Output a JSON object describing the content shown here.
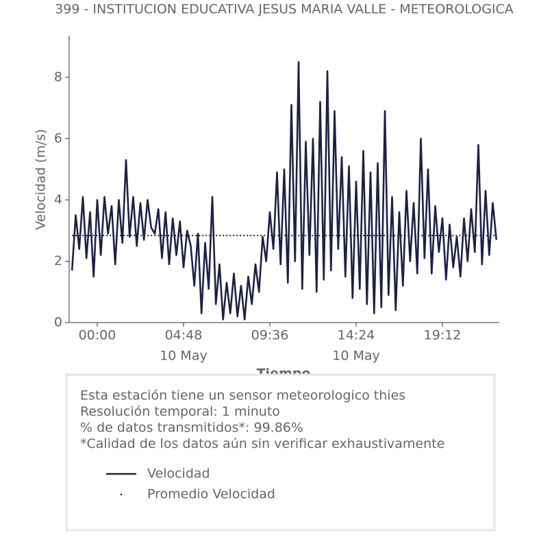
{
  "chart_data": {
    "type": "line",
    "title": "399 - INSTITUCION EDUCATIVA JESUS MARIA VALLE - METEOROLOGICA",
    "xlabel": "Tiempo",
    "ylabel": "Velocidad (m/s)",
    "x": [
      -1.4,
      -1.2,
      -1.0,
      -0.8,
      -0.6,
      -0.4,
      -0.2,
      0.0,
      0.2,
      0.4,
      0.6,
      0.8,
      1.0,
      1.2,
      1.4,
      1.6,
      1.8,
      2.0,
      2.2,
      2.4,
      2.6,
      2.8,
      3.0,
      3.2,
      3.4,
      3.6,
      3.8,
      4.0,
      4.2,
      4.4,
      4.6,
      4.8,
      5.0,
      5.2,
      5.4,
      5.6,
      5.8,
      6.0,
      6.2,
      6.4,
      6.6,
      6.8,
      7.0,
      7.2,
      7.4,
      7.6,
      7.8,
      8.0,
      8.2,
      8.4,
      8.6,
      8.8,
      9.0,
      9.2,
      9.4,
      9.6,
      9.8,
      10.0,
      10.2,
      10.4,
      10.6,
      10.8,
      11.0,
      11.2,
      11.4,
      11.6,
      11.8,
      12.0,
      12.2,
      12.4,
      12.6,
      12.8,
      13.0,
      13.2,
      13.4,
      13.6,
      13.8,
      14.0,
      14.2,
      14.4,
      14.6,
      14.8,
      15.0,
      15.2,
      15.4,
      15.6,
      15.8,
      16.0,
      16.2,
      16.4,
      16.6,
      16.8,
      17.0,
      17.2,
      17.4,
      17.6,
      17.8,
      18.0,
      18.2,
      18.4,
      18.6,
      18.8,
      19.0,
      19.2,
      19.4,
      19.6,
      19.8,
      20.0,
      20.2,
      20.4,
      20.6,
      20.8,
      21.0,
      21.2,
      21.4,
      21.6,
      21.8,
      22.0,
      22.2
    ],
    "series": [
      {
        "name": "Velocidad",
        "color": "#1f2045",
        "values": [
          1.7,
          3.5,
          2.4,
          4.1,
          2.1,
          3.6,
          1.5,
          4.0,
          2.2,
          4.1,
          2.9,
          3.8,
          1.9,
          4.0,
          2.6,
          5.3,
          2.8,
          4.1,
          2.5,
          3.9,
          2.7,
          4.0,
          3.1,
          2.9,
          3.7,
          2.1,
          3.6,
          1.9,
          3.4,
          2.2,
          3.3,
          1.8,
          3.0,
          2.5,
          1.2,
          2.9,
          0.3,
          2.6,
          1.1,
          4.1,
          0.6,
          1.9,
          0.1,
          1.3,
          0.3,
          1.6,
          0.2,
          1.2,
          0.1,
          1.5,
          0.6,
          1.9,
          1.0,
          2.8,
          2.0,
          3.6,
          2.4,
          4.9,
          1.9,
          5.0,
          1.3,
          7.1,
          2.0,
          8.5,
          1.1,
          5.9,
          2.2,
          6.0,
          1.0,
          7.2,
          1.4,
          8.2,
          1.7,
          6.9,
          2.4,
          5.4,
          1.5,
          5.1,
          0.8,
          4.6,
          1.1,
          5.6,
          0.6,
          4.9,
          0.3,
          5.2,
          0.5,
          6.9,
          0.9,
          4.1,
          0.4,
          3.6,
          1.2,
          4.3,
          2.0,
          3.9,
          1.6,
          6.0,
          2.1,
          5.0,
          1.6,
          3.8,
          2.3,
          3.4,
          1.4,
          3.2,
          1.8,
          2.8,
          1.5,
          3.4,
          2.0,
          3.7,
          2.3,
          5.8,
          1.9,
          4.3,
          2.2,
          3.9,
          2.7
        ]
      },
      {
        "name": "Promedio Velocidad",
        "color": "#1f2045",
        "value": 2.84,
        "style": "dotted"
      }
    ],
    "xlim": [
      -1.56,
      22.36
    ],
    "xticks": [
      {
        "value": 0,
        "label": "00:00"
      },
      {
        "value": 4.8,
        "label": "04:48"
      },
      {
        "value": 9.6,
        "label": "09:36"
      },
      {
        "value": 14.4,
        "label": "14:24"
      },
      {
        "value": 19.2,
        "label": "19:12"
      }
    ],
    "xdate_labels": [
      {
        "value": 4.8,
        "label": "10 May"
      },
      {
        "value": 14.4,
        "label": "10 May"
      }
    ],
    "ylim": [
      0,
      9.36
    ],
    "yticks": [
      0,
      2,
      4,
      6,
      8
    ],
    "notes": [
      "Esta estación tiene un sensor meteorologico thies",
      "Resolución temporal: 1 minuto",
      "% de datos transmitidos*: 99.86%",
      "*Calidad de los datos aún sin verificar exhaustivamente"
    ]
  }
}
